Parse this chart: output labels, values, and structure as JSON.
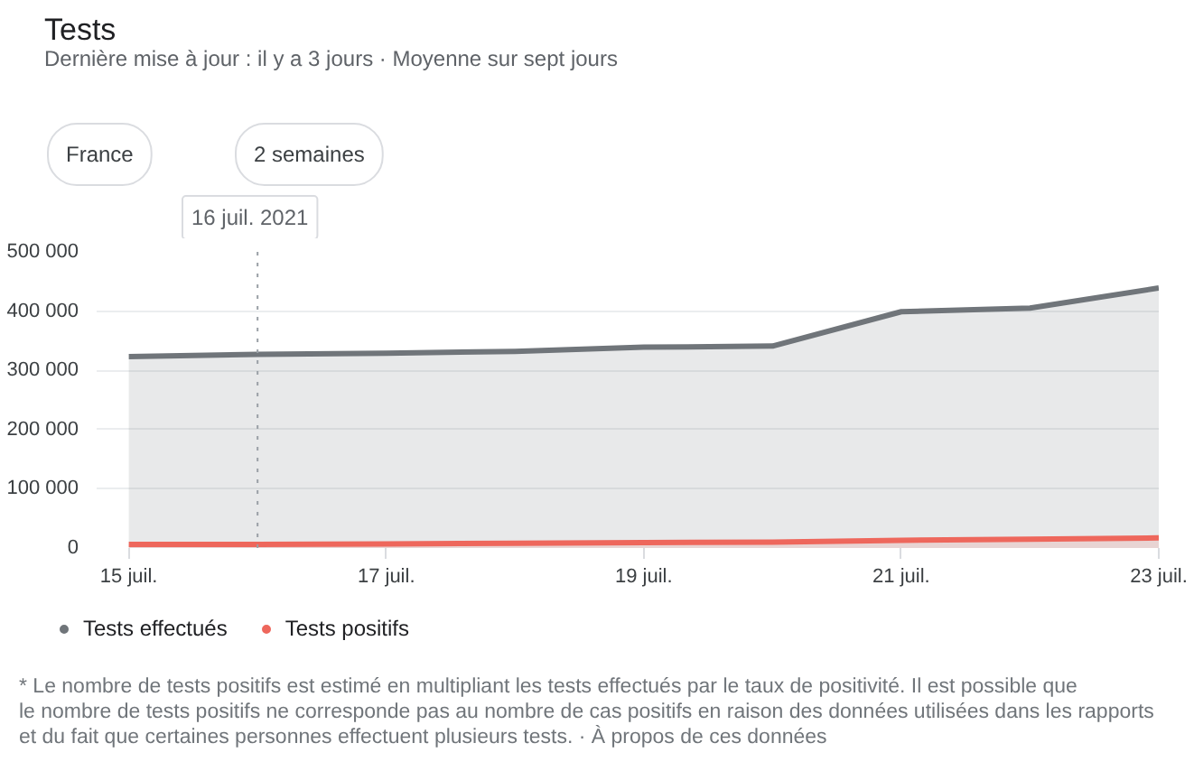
{
  "chart_data": {
    "type": "area",
    "title": "Tests",
    "subtitle": "Dernière mise à jour : il y a 3 jours · Moyenne sur sept jours",
    "x": [
      "2021-07-15",
      "2021-07-16",
      "2021-07-17",
      "2021-07-18",
      "2021-07-19",
      "2021-07-20",
      "2021-07-21",
      "2021-07-22",
      "2021-07-23"
    ],
    "series": [
      {
        "name": "Tests effectués",
        "color": "#70757a",
        "values": [
          323000,
          327000,
          329000,
          332000,
          339000,
          341000,
          399000,
          405000,
          439000
        ]
      },
      {
        "name": "Tests positifs",
        "color": "#ee675c",
        "values": [
          6000,
          6000,
          7000,
          8000,
          9000,
          10000,
          13000,
          15000,
          17000
        ]
      }
    ],
    "xlim": [
      "2021-07-14T18:00",
      "2021-07-23"
    ],
    "xticks": [
      {
        "value": "2021-07-15",
        "label": "15 juil."
      },
      {
        "value": "2021-07-17",
        "label": "17 juil."
      },
      {
        "value": "2021-07-19",
        "label": "19 juil."
      },
      {
        "value": "2021-07-21",
        "label": "21 juil."
      },
      {
        "value": "2021-07-23",
        "label": "23 juil."
      }
    ],
    "ylim": [
      0,
      500000
    ],
    "yticks": [
      0,
      {
        "value": 100000,
        "label": "100 000"
      },
      {
        "value": 200000,
        "label": "200 000"
      },
      {
        "value": 300000,
        "label": "300 000"
      },
      {
        "value": 400000,
        "label": "400 000"
      },
      {
        "value": 500000,
        "label": "500 000"
      }
    ],
    "grid": "y",
    "legend": "bottom left",
    "ref_lines": [
      {
        "axis": "x",
        "value": "2021-07-16",
        "label": "16 juil. 2021",
        "color": "#9aa0a6",
        "line_style": "dotted"
      }
    ],
    "annotations": [
      "France",
      "2 semaines",
      "* Le nombre de tests positifs est estimé en multipliant les tests effectués par le taux de positivité. Il est possible que le nombre de tests positifs ne corresponde pas au nombre de cas positifs en raison des données utilisées dans les rapports et du fait que certaines personnes effectuent plusieurs tests.  ·  À propos de ces données"
    ]
  }
}
